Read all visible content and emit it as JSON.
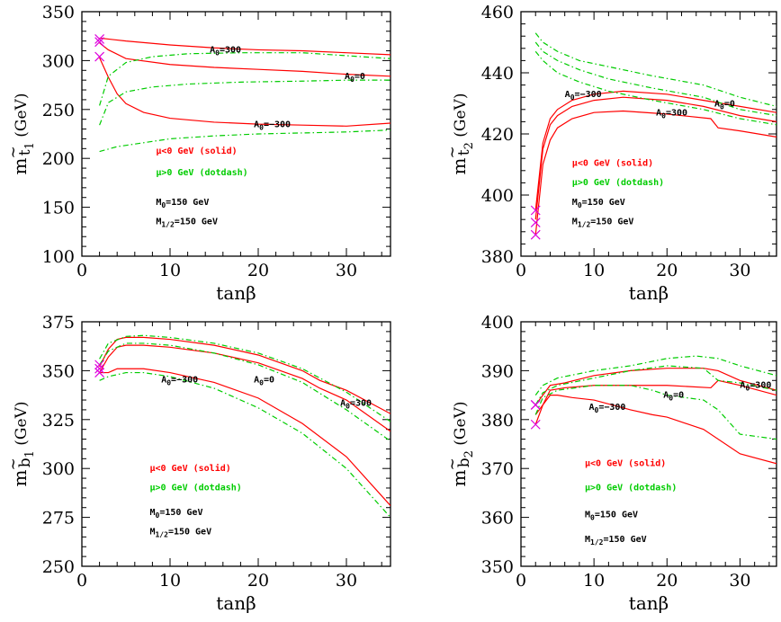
{
  "colors": {
    "mu_neg": "#ff0000",
    "mu_pos": "#00cc00",
    "marker": "#dd00dd",
    "axis": "#000000"
  },
  "chart_data": [
    {
      "type": "line",
      "id": "mt1",
      "title": "",
      "xlabel": "tanβ",
      "ylabel": "m~t1 (GeV)",
      "ylabel_main": "m",
      "ylabel_tilde": "~",
      "ylabel_sub": "t",
      "ylabel_subsub": "1",
      "ylabel_unit": "(GeV)",
      "xlim": [
        0,
        35
      ],
      "ylim": [
        100,
        350
      ],
      "xticks": [
        0,
        10,
        20,
        30
      ],
      "yticks": [
        100,
        150,
        200,
        250,
        300,
        350
      ],
      "legend": {
        "solid": "μ<0 GeV (solid)",
        "dotdash": "μ>0 GeV (dotdash)",
        "m0": "M0=150 GeV",
        "m12": "M1/2=150 GeV"
      },
      "series": [
        {
          "name": "A0=300",
          "mu": "neg",
          "x": [
            2,
            3,
            5,
            10,
            15,
            20,
            25,
            30,
            35
          ],
          "y": [
            323,
            322,
            320,
            316,
            313,
            311,
            310,
            308,
            306
          ]
        },
        {
          "name": "A0=0",
          "mu": "neg",
          "x": [
            2,
            3,
            5,
            10,
            15,
            20,
            25,
            30,
            35
          ],
          "y": [
            318,
            311,
            302,
            296,
            293,
            291,
            289,
            286,
            284
          ]
        },
        {
          "name": "A0=-300",
          "mu": "neg",
          "x": [
            2,
            3,
            4,
            5,
            7,
            10,
            15,
            20,
            25,
            30,
            35
          ],
          "y": [
            303,
            283,
            266,
            256,
            247,
            241,
            237,
            235,
            234,
            233,
            236
          ]
        },
        {
          "name": "A0=300",
          "mu": "pos",
          "x": [
            2,
            3,
            5,
            8,
            12,
            18,
            25,
            30,
            35
          ],
          "y": [
            254,
            284,
            298,
            304,
            307,
            308,
            308,
            305,
            302
          ]
        },
        {
          "name": "A0=0",
          "mu": "pos",
          "x": [
            2,
            3,
            5,
            8,
            12,
            18,
            25,
            30,
            35
          ],
          "y": [
            234,
            257,
            268,
            273,
            276,
            278,
            279,
            280,
            280
          ]
        },
        {
          "name": "A0=-300",
          "mu": "pos",
          "x": [
            2,
            4,
            7,
            10,
            15,
            20,
            25,
            30,
            35
          ],
          "y": [
            207,
            212,
            216,
            220,
            223,
            225,
            226,
            227,
            229
          ]
        }
      ],
      "markers": {
        "x": [
          2,
          2,
          2
        ],
        "y": [
          322,
          319,
          304
        ]
      },
      "labels": [
        {
          "text": "A0=300",
          "main": "A",
          "sub": "0",
          "rest": "=300",
          "x": 14.5,
          "y": 308
        },
        {
          "text": "A0=0",
          "main": "A",
          "sub": "0",
          "rest": "=0",
          "x": 29.8,
          "y": 281
        },
        {
          "text": "A0=-300",
          "main": "A",
          "sub": "0",
          "rest": "=−300",
          "x": 19.5,
          "y": 232
        }
      ]
    },
    {
      "type": "line",
      "id": "mt2",
      "title": "",
      "xlabel": "tanβ",
      "ylabel": "m~t2 (GeV)",
      "ylabel_main": "m",
      "ylabel_tilde": "~",
      "ylabel_sub": "t",
      "ylabel_subsub": "2",
      "ylabel_unit": "(GeV)",
      "xlim": [
        0,
        35
      ],
      "ylim": [
        380,
        460
      ],
      "xticks": [
        0,
        10,
        20,
        30
      ],
      "yticks": [
        380,
        400,
        420,
        440,
        460
      ],
      "legend": {
        "solid": "μ<0 GeV (solid)",
        "dotdash": "μ>0 GeV (dotdash)",
        "m0": "M0=150 GeV",
        "m12": "M1/2=150 GeV"
      },
      "series": [
        {
          "name": "A0=0",
          "mu": "neg",
          "x": [
            2,
            3,
            4,
            5,
            7,
            10,
            14,
            20,
            25,
            30,
            35
          ],
          "y": [
            395,
            417,
            425,
            428,
            431,
            433,
            434,
            433,
            431,
            429,
            427
          ]
        },
        {
          "name": "A0=-300",
          "mu": "neg",
          "x": [
            2,
            3,
            4,
            5,
            7,
            10,
            14,
            20,
            25,
            30,
            35
          ],
          "y": [
            392,
            415,
            423,
            426,
            429,
            431,
            432,
            431,
            429,
            426,
            424
          ]
        },
        {
          "name": "A0=300",
          "mu": "neg",
          "x": [
            2,
            3,
            4,
            5,
            7,
            10,
            14,
            20,
            26,
            27,
            30,
            35
          ],
          "y": [
            387,
            410,
            418,
            422,
            425,
            427,
            427.5,
            426.5,
            425,
            422,
            421,
            419
          ]
        },
        {
          "name": "A0=300",
          "mu": "pos",
          "x": [
            2,
            3,
            5,
            8,
            12,
            18,
            25,
            30,
            35
          ],
          "y": [
            453,
            450,
            447,
            444,
            442,
            439,
            436,
            432,
            429
          ]
        },
        {
          "name": "A0=0",
          "mu": "pos",
          "x": [
            2,
            3,
            5,
            8,
            12,
            18,
            25,
            30,
            35
          ],
          "y": [
            450,
            447,
            444,
            441,
            438,
            435,
            432,
            428,
            426
          ]
        },
        {
          "name": "A0=-300",
          "mu": "pos",
          "x": [
            2,
            3,
            5,
            8,
            12,
            18,
            25,
            30,
            35
          ],
          "y": [
            447,
            444,
            440,
            437,
            434,
            431,
            428,
            425,
            423
          ]
        }
      ],
      "markers": {
        "x": [
          2,
          2,
          2
        ],
        "y": [
          395,
          391,
          387
        ]
      },
      "labels": [
        {
          "text": "A0=-300",
          "main": "A",
          "sub": "0",
          "rest": "=−300",
          "x": 6,
          "y": 432
        },
        {
          "text": "A0=300",
          "main": "A",
          "sub": "0",
          "rest": "=300",
          "x": 18.5,
          "y": 426
        },
        {
          "text": "A0=0",
          "main": "A",
          "sub": "0",
          "rest": "=0",
          "x": 26.5,
          "y": 429
        }
      ]
    },
    {
      "type": "line",
      "id": "mb1",
      "title": "",
      "xlabel": "tanβ",
      "ylabel": "m~b1 (GeV)",
      "ylabel_main": "m",
      "ylabel_tilde": "~",
      "ylabel_sub": "b",
      "ylabel_subsub": "1",
      "ylabel_unit": "(GeV)",
      "xlim": [
        0,
        35
      ],
      "ylim": [
        250,
        375
      ],
      "xticks": [
        0,
        10,
        20,
        30
      ],
      "yticks": [
        250,
        275,
        300,
        325,
        350,
        375
      ],
      "legend": {
        "solid": "μ<0 GeV (solid)",
        "dotdash": "μ>0 GeV (dotdash)",
        "m0": "M0=150 GeV",
        "m12": "M1/2=150 GeV"
      },
      "series": [
        {
          "name": "A0=300",
          "mu": "neg",
          "x": [
            2,
            3,
            4,
            5,
            7,
            10,
            15,
            20,
            25,
            27,
            30,
            35
          ],
          "y": [
            352,
            361,
            366,
            367,
            367,
            366,
            363,
            358,
            350,
            345,
            340,
            328
          ]
        },
        {
          "name": "A0=0",
          "mu": "neg",
          "x": [
            2,
            3,
            4,
            5,
            7,
            10,
            15,
            20,
            25,
            27,
            30,
            35
          ],
          "y": [
            349,
            357,
            362,
            363,
            363,
            362,
            359,
            354,
            346,
            341,
            335,
            319
          ]
        },
        {
          "name": "A0=-300",
          "mu": "neg",
          "x": [
            2,
            3,
            4,
            5,
            7,
            10,
            15,
            20,
            25,
            30,
            35
          ],
          "y": [
            349,
            349,
            351,
            351,
            351,
            349,
            344,
            336,
            323,
            306,
            281
          ]
        },
        {
          "name": "A0=300",
          "mu": "pos",
          "x": [
            2,
            3,
            5,
            7,
            10,
            15,
            20,
            25,
            30,
            35
          ],
          "y": [
            356,
            364,
            367.5,
            368,
            367,
            364,
            359,
            351,
            339,
            324
          ]
        },
        {
          "name": "A0=0",
          "mu": "pos",
          "x": [
            2,
            3,
            5,
            7,
            10,
            15,
            20,
            25,
            30,
            35
          ],
          "y": [
            353,
            360,
            364,
            364,
            363,
            359,
            353,
            344,
            330,
            314
          ]
        },
        {
          "name": "A0=-300",
          "mu": "pos",
          "x": [
            2,
            3,
            5,
            7,
            10,
            15,
            20,
            25,
            30,
            35
          ],
          "y": [
            345,
            347,
            349,
            349,
            347,
            341,
            331,
            318,
            300,
            275
          ]
        }
      ],
      "markers": {
        "x": [
          2,
          2,
          2
        ],
        "y": [
          353,
          351,
          349
        ]
      },
      "labels": [
        {
          "text": "A0=-300",
          "main": "A",
          "sub": "0",
          "rest": "=−300",
          "x": 9,
          "y": 344
        },
        {
          "text": "A0=0",
          "main": "A",
          "sub": "0",
          "rest": "=0",
          "x": 19.5,
          "y": 344
        },
        {
          "text": "A0=300",
          "main": "A",
          "sub": "0",
          "rest": "=300",
          "x": 29.3,
          "y": 332
        }
      ]
    },
    {
      "type": "line",
      "id": "mb2",
      "title": "",
      "xlabel": "tanβ",
      "ylabel": "m~b2 (GeV)",
      "ylabel_main": "m",
      "ylabel_tilde": "~",
      "ylabel_sub": "b",
      "ylabel_subsub": "2",
      "ylabel_unit": "(GeV)",
      "xlim": [
        0,
        35
      ],
      "ylim": [
        350,
        400
      ],
      "xticks": [
        0,
        10,
        20,
        30
      ],
      "yticks": [
        350,
        360,
        370,
        380,
        390,
        400
      ],
      "legend": {
        "solid": "μ<0 GeV (solid)",
        "dotdash": "μ>0 GeV (dotdash)",
        "m0": "M0=150 GeV",
        "m12": "M1/2=150 GeV"
      },
      "series": [
        {
          "name": "A0=300",
          "mu": "neg",
          "x": [
            2,
            3,
            4,
            6,
            10,
            15,
            20,
            25,
            27,
            30,
            35
          ],
          "y": [
            383,
            385,
            387,
            387.5,
            389,
            390,
            390.5,
            390.5,
            390,
            388,
            386
          ]
        },
        {
          "name": "A0=0",
          "mu": "neg",
          "x": [
            2,
            3,
            4,
            6,
            10,
            15,
            20,
            26,
            27,
            30,
            35
          ],
          "y": [
            381,
            383,
            386,
            386.5,
            387,
            387,
            387,
            386.5,
            388,
            387,
            385
          ]
        },
        {
          "name": "A0=-300",
          "mu": "neg",
          "x": [
            2,
            3,
            4,
            5,
            7,
            10,
            15,
            18,
            20,
            25,
            30,
            35
          ],
          "y": [
            379,
            383,
            385,
            385,
            384.5,
            384,
            382,
            381,
            380.5,
            378,
            373,
            371
          ]
        },
        {
          "name": "A0=300",
          "mu": "pos",
          "x": [
            2,
            3,
            5,
            10,
            15,
            20,
            24,
            27,
            30,
            35
          ],
          "y": [
            385,
            387,
            388.5,
            390,
            391,
            392.5,
            393,
            392.5,
            391,
            389
          ]
        },
        {
          "name": "A0=0",
          "mu": "pos",
          "x": [
            2,
            3,
            5,
            10,
            15,
            20,
            25,
            27,
            30,
            35
          ],
          "y": [
            383,
            385.5,
            387,
            388.5,
            390,
            391,
            390.5,
            388,
            387.5,
            386
          ]
        },
        {
          "name": "A0=-300",
          "mu": "pos",
          "x": [
            2,
            3,
            5,
            10,
            15,
            18,
            20,
            25,
            27,
            30,
            35
          ],
          "y": [
            381,
            384.5,
            386,
            387,
            387,
            386,
            385,
            384,
            382,
            377,
            376
          ]
        }
      ],
      "markers": {
        "x": [
          2,
          2,
          2
        ],
        "y": [
          383,
          383,
          379
        ]
      },
      "labels": [
        {
          "text": "A0=0",
          "main": "A",
          "sub": "0",
          "rest": "=0",
          "x": 19.5,
          "y": 384.5
        },
        {
          "text": "A0=-300",
          "main": "A",
          "sub": "0",
          "rest": "=−300",
          "x": 9.3,
          "y": 382
        },
        {
          "text": "A0=300",
          "main": "A",
          "sub": "0",
          "rest": "=300",
          "x": 30,
          "y": 386.5
        }
      ]
    }
  ]
}
